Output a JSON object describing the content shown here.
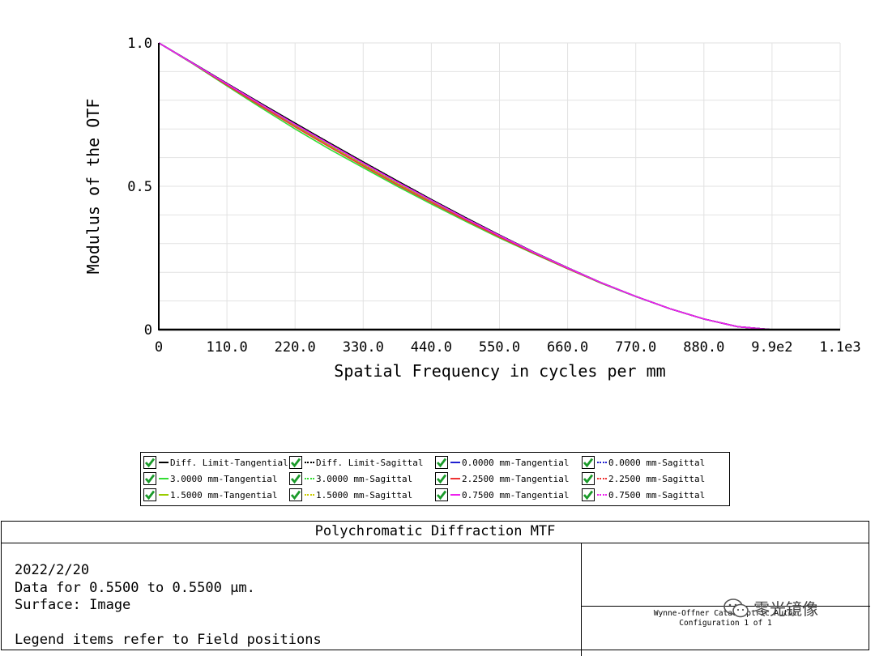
{
  "chart_data": {
    "type": "line",
    "title": "",
    "xlabel": "Spatial Frequency in cycles per mm",
    "ylabel": "Modulus of the OTF",
    "xlim": [
      0,
      1100
    ],
    "ylim": [
      0,
      1
    ],
    "x_ticks": [
      "0",
      "110.0",
      "220.0",
      "330.0",
      "440.0",
      "550.0",
      "660.0",
      "770.0",
      "880.0",
      "9.9e2",
      "1.1e3"
    ],
    "y_ticks": [
      "0",
      "0.5",
      "1.0"
    ],
    "grid": true,
    "cutoff": 990,
    "x": [
      0,
      55,
      110,
      165,
      220,
      275,
      330,
      385,
      440,
      495,
      550,
      605,
      660,
      715,
      770,
      825,
      880,
      935,
      990,
      1100
    ],
    "series": [
      {
        "name": "Diff. Limit-Tangential",
        "color": "#000000",
        "style": "solid",
        "values": [
          1.0,
          0.93,
          0.859,
          0.789,
          0.72,
          0.652,
          0.585,
          0.519,
          0.454,
          0.391,
          0.33,
          0.271,
          0.216,
          0.163,
          0.116,
          0.073,
          0.037,
          0.01,
          0.0,
          0.0
        ]
      },
      {
        "name": "Diff. Limit-Sagittal",
        "color": "#000000",
        "style": "dotted",
        "values": [
          1.0,
          0.93,
          0.859,
          0.789,
          0.72,
          0.652,
          0.585,
          0.519,
          0.454,
          0.391,
          0.33,
          0.271,
          0.216,
          0.163,
          0.116,
          0.073,
          0.037,
          0.01,
          0.0,
          0.0
        ]
      },
      {
        "name": "0.0000 mm-Tangential",
        "color": "#2020d0",
        "style": "solid",
        "values": [
          1.0,
          0.929,
          0.857,
          0.786,
          0.716,
          0.648,
          0.581,
          0.515,
          0.451,
          0.388,
          0.328,
          0.27,
          0.215,
          0.163,
          0.116,
          0.073,
          0.037,
          0.01,
          0.0,
          0.0
        ]
      },
      {
        "name": "0.0000 mm-Sagittal",
        "color": "#2020d0",
        "style": "dotted",
        "values": [
          1.0,
          0.929,
          0.857,
          0.786,
          0.716,
          0.648,
          0.581,
          0.515,
          0.451,
          0.388,
          0.328,
          0.27,
          0.215,
          0.163,
          0.116,
          0.073,
          0.037,
          0.01,
          0.0,
          0.0
        ]
      },
      {
        "name": "3.0000 mm-Tangential",
        "color": "#33dd33",
        "style": "solid",
        "values": [
          1.0,
          0.927,
          0.85,
          0.774,
          0.7,
          0.63,
          0.565,
          0.5,
          0.438,
          0.378,
          0.32,
          0.265,
          0.212,
          0.161,
          0.115,
          0.073,
          0.037,
          0.01,
          0.0,
          0.0
        ]
      },
      {
        "name": "3.0000 mm-Sagittal",
        "color": "#33dd33",
        "style": "dotted",
        "values": [
          1.0,
          0.929,
          0.856,
          0.784,
          0.713,
          0.645,
          0.578,
          0.512,
          0.448,
          0.386,
          0.326,
          0.269,
          0.214,
          0.162,
          0.116,
          0.073,
          0.037,
          0.01,
          0.0,
          0.0
        ]
      },
      {
        "name": "2.2500 mm-Tangential",
        "color": "#ee3333",
        "style": "solid",
        "values": [
          1.0,
          0.928,
          0.853,
          0.779,
          0.707,
          0.638,
          0.571,
          0.505,
          0.443,
          0.382,
          0.323,
          0.267,
          0.213,
          0.162,
          0.116,
          0.073,
          0.037,
          0.01,
          0.0,
          0.0
        ]
      },
      {
        "name": "2.2500 mm-Sagittal",
        "color": "#ee3333",
        "style": "dotted",
        "values": [
          1.0,
          0.929,
          0.857,
          0.785,
          0.715,
          0.647,
          0.58,
          0.514,
          0.45,
          0.387,
          0.327,
          0.27,
          0.215,
          0.163,
          0.116,
          0.073,
          0.037,
          0.01,
          0.0,
          0.0
        ]
      },
      {
        "name": "1.5000 mm-Tangential",
        "color": "#99cc00",
        "style": "solid",
        "values": [
          1.0,
          0.928,
          0.855,
          0.782,
          0.711,
          0.642,
          0.575,
          0.509,
          0.446,
          0.384,
          0.325,
          0.268,
          0.214,
          0.162,
          0.116,
          0.073,
          0.037,
          0.01,
          0.0,
          0.0
        ]
      },
      {
        "name": "1.5000 mm-Sagittal",
        "color": "#cccc00",
        "style": "dotted",
        "values": [
          1.0,
          0.929,
          0.857,
          0.786,
          0.716,
          0.647,
          0.58,
          0.514,
          0.45,
          0.388,
          0.328,
          0.27,
          0.215,
          0.163,
          0.116,
          0.073,
          0.037,
          0.01,
          0.0,
          0.0
        ]
      },
      {
        "name": "0.7500 mm-Tangential",
        "color": "#ee22ee",
        "style": "solid",
        "values": [
          1.0,
          0.929,
          0.857,
          0.786,
          0.716,
          0.648,
          0.581,
          0.515,
          0.451,
          0.388,
          0.328,
          0.27,
          0.215,
          0.163,
          0.116,
          0.073,
          0.037,
          0.01,
          0.0,
          0.0
        ]
      },
      {
        "name": "0.7500 mm-Sagittal",
        "color": "#ee22ee",
        "style": "dotted",
        "values": [
          1.0,
          0.929,
          0.857,
          0.786,
          0.716,
          0.648,
          0.581,
          0.515,
          0.451,
          0.388,
          0.328,
          0.27,
          0.215,
          0.163,
          0.116,
          0.073,
          0.037,
          0.01,
          0.0,
          0.0
        ]
      }
    ]
  },
  "legend": {
    "items": [
      {
        "label": "Diff. Limit-Tangential",
        "color": "#000000",
        "style": "solid",
        "checked": true
      },
      {
        "label": "Diff. Limit-Sagittal",
        "color": "#000000",
        "style": "dotted",
        "checked": true
      },
      {
        "label": "0.0000 mm-Tangential",
        "color": "#2020d0",
        "style": "solid",
        "checked": true
      },
      {
        "label": "0.0000 mm-Sagittal",
        "color": "#2020d0",
        "style": "dotted",
        "checked": true
      },
      {
        "label": "3.0000 mm-Tangential",
        "color": "#33dd33",
        "style": "solid",
        "checked": true
      },
      {
        "label": "3.0000 mm-Sagittal",
        "color": "#33dd33",
        "style": "dotted",
        "checked": true
      },
      {
        "label": "2.2500 mm-Tangential",
        "color": "#ee3333",
        "style": "solid",
        "checked": true
      },
      {
        "label": "2.2500 mm-Sagittal",
        "color": "#ee3333",
        "style": "dotted",
        "checked": true
      },
      {
        "label": "1.5000 mm-Tangential",
        "color": "#99cc00",
        "style": "solid",
        "checked": true
      },
      {
        "label": "1.5000 mm-Sagittal",
        "color": "#cccc00",
        "style": "dotted",
        "checked": true
      },
      {
        "label": "0.7500 mm-Tangential",
        "color": "#ee22ee",
        "style": "solid",
        "checked": true
      },
      {
        "label": "0.7500 mm-Sagittal",
        "color": "#ee22ee",
        "style": "dotted",
        "checked": true
      }
    ]
  },
  "info": {
    "title": "Polychromatic Diffraction MTF",
    "date": "2022/2/20",
    "data_range": "Data for 0.5500 to 0.5500 μm.",
    "surface": "Surface: Image",
    "legend_note": "Legend items refer to Field positions",
    "system_name": "Wynne-Offner Catadioptric Autoc",
    "configuration": "Configuration 1 of 1"
  },
  "watermark": {
    "text": "零光镜像"
  }
}
